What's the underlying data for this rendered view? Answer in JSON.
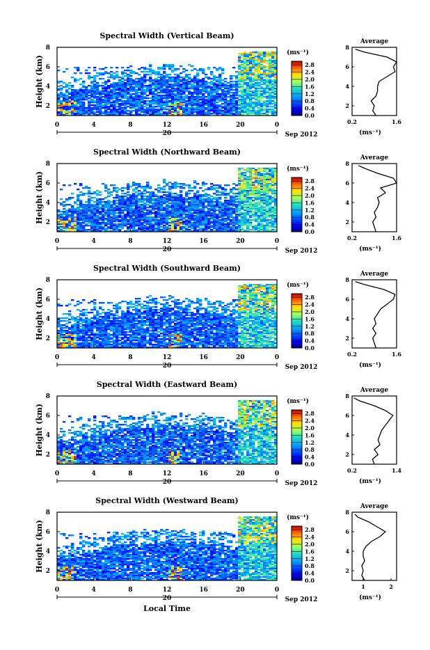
{
  "figure": {
    "xlabel": "Local Time",
    "x_ticks": [
      "0",
      "4",
      "8",
      "12",
      "16",
      "20",
      "0"
    ],
    "date_label": "20",
    "month_label": "Sep 2012",
    "ylabel": "Height (km)",
    "y_ticks": [
      "2",
      "4",
      "6",
      "8"
    ],
    "unit_label": "(ms⁻¹)",
    "colorbar_ticks": [
      "0.0",
      "0.4",
      "0.8",
      "1.2",
      "1.6",
      "2.0",
      "2.4",
      "2.8"
    ],
    "average_title": "Average"
  },
  "chart_data": [
    {
      "type": "heatmap",
      "title": "Spectral Width (Vertical Beam)",
      "xlabel": "",
      "ylabel": "Height (km)",
      "xlim": [
        0,
        24
      ],
      "ylim": [
        1,
        8
      ],
      "clim": [
        0,
        3.0
      ],
      "colorbar_ticks": [
        0.0,
        0.4,
        0.8,
        1.2,
        1.6,
        2.0,
        2.4,
        2.8
      ],
      "average_profile": {
        "title": "Average",
        "xlabel": "(ms⁻¹)",
        "x_ticks": [
          "0.2",
          "1.6"
        ],
        "xlim": [
          0.2,
          1.6
        ],
        "ylim": [
          1,
          8
        ],
        "height": [
          1.0,
          1.5,
          2.0,
          2.5,
          3.0,
          3.5,
          4.0,
          4.5,
          5.0,
          5.5,
          6.0,
          6.5,
          7.0,
          7.5,
          7.8
        ],
        "width": [
          0.95,
          0.85,
          0.9,
          0.8,
          0.95,
          1.0,
          1.0,
          1.05,
          1.3,
          1.55,
          1.5,
          1.6,
          1.3,
          0.6,
          0.3
        ]
      }
    },
    {
      "type": "heatmap",
      "title": "Spectral Width (Northward Beam)",
      "xlabel": "",
      "ylabel": "Height (km)",
      "xlim": [
        0,
        24
      ],
      "ylim": [
        1,
        8
      ],
      "clim": [
        0,
        3.0
      ],
      "colorbar_ticks": [
        0.0,
        0.4,
        0.8,
        1.2,
        1.6,
        2.0,
        2.4,
        2.8
      ],
      "average_profile": {
        "title": "Average",
        "xlabel": "(ms⁻¹)",
        "x_ticks": [
          "0.2",
          "1.6"
        ],
        "xlim": [
          0.2,
          1.6
        ],
        "ylim": [
          1,
          8
        ],
        "height": [
          1.0,
          1.5,
          2.0,
          2.5,
          3.0,
          3.5,
          4.0,
          4.5,
          5.0,
          5.5,
          6.0,
          6.5,
          7.0,
          7.5,
          7.8
        ],
        "width": [
          0.95,
          0.9,
          0.85,
          0.95,
          0.9,
          1.0,
          1.05,
          1.0,
          1.25,
          1.1,
          1.6,
          1.5,
          1.0,
          0.6,
          0.4
        ]
      }
    },
    {
      "type": "heatmap",
      "title": "Spectral Width (Southward Beam)",
      "xlabel": "",
      "ylabel": "Height (km)",
      "xlim": [
        0,
        24
      ],
      "ylim": [
        1,
        8
      ],
      "clim": [
        0,
        3.0
      ],
      "colorbar_ticks": [
        0.0,
        0.4,
        0.8,
        1.2,
        1.6,
        2.0,
        2.4,
        2.8
      ],
      "average_profile": {
        "title": "Average",
        "xlabel": "(ms⁻¹)",
        "x_ticks": [
          "0.2",
          "1.6"
        ],
        "xlim": [
          0.2,
          1.6
        ],
        "ylim": [
          1,
          8
        ],
        "height": [
          1.0,
          1.5,
          2.0,
          2.5,
          3.0,
          3.5,
          4.0,
          4.5,
          5.0,
          5.5,
          6.0,
          6.5,
          7.0,
          7.5,
          7.8
        ],
        "width": [
          0.95,
          0.9,
          0.85,
          0.95,
          0.85,
          0.95,
          0.9,
          1.0,
          1.1,
          1.3,
          1.5,
          1.55,
          1.2,
          0.6,
          0.3
        ]
      }
    },
    {
      "type": "heatmap",
      "title": "Spectral Width (Eastward Beam)",
      "xlabel": "",
      "ylabel": "Height (km)",
      "xlim": [
        0,
        24
      ],
      "ylim": [
        1,
        8
      ],
      "clim": [
        0,
        3.0
      ],
      "colorbar_ticks": [
        0.0,
        0.4,
        0.8,
        1.2,
        1.6,
        2.0,
        2.4,
        2.8
      ],
      "average_profile": {
        "title": "Average",
        "xlabel": "(ms⁻¹)",
        "x_ticks": [
          "0.2",
          "1.4"
        ],
        "xlim": [
          0.2,
          1.4
        ],
        "ylim": [
          1,
          8
        ],
        "height": [
          1.0,
          1.5,
          2.0,
          2.5,
          3.0,
          3.5,
          4.0,
          4.5,
          5.0,
          5.5,
          6.0,
          6.5,
          7.0,
          7.5,
          7.8
        ],
        "width": [
          0.8,
          0.75,
          0.9,
          0.8,
          0.95,
          0.9,
          0.95,
          1.0,
          1.1,
          1.2,
          1.3,
          1.1,
          0.8,
          0.4,
          0.25
        ]
      }
    },
    {
      "type": "heatmap",
      "title": "Spectral Width (Westward Beam)",
      "xlabel": "Local Time",
      "ylabel": "Height (km)",
      "xlim": [
        0,
        24
      ],
      "ylim": [
        1,
        8
      ],
      "clim": [
        0,
        3.0
      ],
      "colorbar_ticks": [
        0.0,
        0.4,
        0.8,
        1.2,
        1.6,
        2.0,
        2.4,
        2.8
      ],
      "average_profile": {
        "title": "Average",
        "xlabel": "(ms⁻¹)",
        "x_ticks": [
          "1",
          "2"
        ],
        "xlim": [
          0.6,
          2.2
        ],
        "ylim": [
          1,
          8
        ],
        "height": [
          1.0,
          1.5,
          2.0,
          2.5,
          3.0,
          3.5,
          4.0,
          4.5,
          5.0,
          5.5,
          6.0,
          6.5,
          7.0,
          7.5,
          7.8
        ],
        "width": [
          1.05,
          0.95,
          1.0,
          0.95,
          1.05,
          1.0,
          1.0,
          1.1,
          1.3,
          1.6,
          1.8,
          1.5,
          1.2,
          0.8,
          0.7
        ]
      }
    }
  ]
}
